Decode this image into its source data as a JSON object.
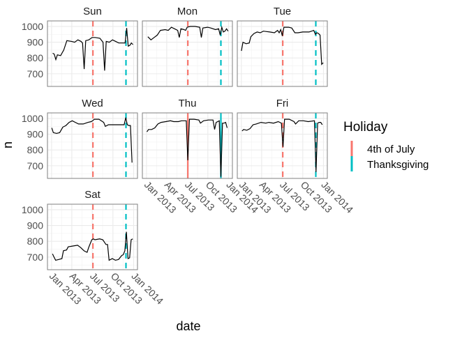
{
  "chart_data": {
    "type": "line",
    "facet_by": "weekday",
    "xlabel": "date",
    "ylabel": "n",
    "ylim": [
      620,
      1035
    ],
    "xlim": [
      "2013-01-01",
      "2013-12-31"
    ],
    "y_ticks": [
      700,
      800,
      900,
      1000
    ],
    "x_ticks": [
      {
        "date": "2013-01-01",
        "label": "Jan 2013"
      },
      {
        "date": "2013-04-01",
        "label": "Apr 2013"
      },
      {
        "date": "2013-07-01",
        "label": "Jul 2013"
      },
      {
        "date": "2013-10-01",
        "label": "Oct 2013"
      },
      {
        "date": "2014-01-01",
        "label": "Jan 2014"
      }
    ],
    "grid": true,
    "legend": {
      "title": "Holiday",
      "placement": "right",
      "entries": [
        {
          "label": "4th of July",
          "date": "2013-07-04",
          "color": "#F8766D"
        },
        {
          "label": "Thanksgiving",
          "date": "2013-11-28",
          "color": "#00BFC4"
        }
      ]
    },
    "panels": [
      {
        "title": "Sun",
        "points": [
          [
            "2013-01-06",
            830
          ],
          [
            "2013-01-13",
            825
          ],
          [
            "2013-01-20",
            790
          ],
          [
            "2013-01-27",
            820
          ],
          [
            "2013-02-10",
            815
          ],
          [
            "2013-02-24",
            850
          ],
          [
            "2013-03-10",
            910
          ],
          [
            "2013-03-31",
            905
          ],
          [
            "2013-04-14",
            900
          ],
          [
            "2013-04-28",
            915
          ],
          [
            "2013-05-12",
            905
          ],
          [
            "2013-05-19",
            895
          ],
          [
            "2013-05-26",
            730
          ],
          [
            "2013-06-02",
            910
          ],
          [
            "2013-06-16",
            915
          ],
          [
            "2013-06-30",
            930
          ],
          [
            "2013-07-14",
            930
          ],
          [
            "2013-08-04",
            925
          ],
          [
            "2013-08-18",
            900
          ],
          [
            "2013-08-25",
            720
          ],
          [
            "2013-09-01",
            905
          ],
          [
            "2013-09-15",
            900
          ],
          [
            "2013-09-29",
            915
          ],
          [
            "2013-10-13",
            905
          ],
          [
            "2013-10-27",
            895
          ],
          [
            "2013-11-17",
            895
          ],
          [
            "2013-11-24",
            895
          ],
          [
            "2013-12-01",
            990
          ],
          [
            "2013-12-08",
            875
          ],
          [
            "2013-12-15",
            880
          ],
          [
            "2013-12-22",
            895
          ],
          [
            "2013-12-29",
            885
          ]
        ]
      },
      {
        "title": "Mon",
        "points": [
          [
            "2013-01-07",
            935
          ],
          [
            "2013-01-21",
            915
          ],
          [
            "2013-02-04",
            930
          ],
          [
            "2013-02-18",
            945
          ],
          [
            "2013-03-04",
            975
          ],
          [
            "2013-03-25",
            980
          ],
          [
            "2013-04-08",
            975
          ],
          [
            "2013-04-22",
            995
          ],
          [
            "2013-05-06",
            985
          ],
          [
            "2013-05-20",
            975
          ],
          [
            "2013-05-27",
            930
          ],
          [
            "2013-06-03",
            985
          ],
          [
            "2013-06-17",
            980
          ],
          [
            "2013-06-24",
            975
          ],
          [
            "2013-07-01",
            995
          ],
          [
            "2013-07-15",
            1000
          ],
          [
            "2013-08-05",
            1000
          ],
          [
            "2013-08-26",
            995
          ],
          [
            "2013-09-02",
            930
          ],
          [
            "2013-09-09",
            990
          ],
          [
            "2013-09-30",
            995
          ],
          [
            "2013-10-14",
            990
          ],
          [
            "2013-11-04",
            980
          ],
          [
            "2013-11-18",
            985
          ],
          [
            "2013-11-25",
            945
          ],
          [
            "2013-12-02",
            995
          ],
          [
            "2013-12-09",
            965
          ],
          [
            "2013-12-16",
            970
          ],
          [
            "2013-12-23",
            985
          ],
          [
            "2013-12-30",
            970
          ]
        ]
      },
      {
        "title": "Tue",
        "points": [
          [
            "2013-01-01",
            845
          ],
          [
            "2013-01-08",
            900
          ],
          [
            "2013-01-22",
            890
          ],
          [
            "2013-02-05",
            895
          ],
          [
            "2013-02-12",
            935
          ],
          [
            "2013-02-26",
            955
          ],
          [
            "2013-03-12",
            965
          ],
          [
            "2013-03-26",
            960
          ],
          [
            "2013-04-09",
            970
          ],
          [
            "2013-05-07",
            965
          ],
          [
            "2013-05-28",
            960
          ],
          [
            "2013-06-11",
            975
          ],
          [
            "2013-06-18",
            960
          ],
          [
            "2013-06-25",
            980
          ],
          [
            "2013-07-02",
            940
          ],
          [
            "2013-07-09",
            995
          ],
          [
            "2013-07-30",
            995
          ],
          [
            "2013-08-13",
            990
          ],
          [
            "2013-08-27",
            960
          ],
          [
            "2013-09-10",
            960
          ],
          [
            "2013-10-01",
            965
          ],
          [
            "2013-10-29",
            965
          ],
          [
            "2013-11-19",
            975
          ],
          [
            "2013-11-26",
            950
          ],
          [
            "2013-12-03",
            960
          ],
          [
            "2013-12-10",
            955
          ],
          [
            "2013-12-17",
            945
          ],
          [
            "2013-12-24",
            760
          ],
          [
            "2013-12-31",
            770
          ]
        ]
      },
      {
        "title": "Wed",
        "points": [
          [
            "2013-01-02",
            940
          ],
          [
            "2013-01-09",
            910
          ],
          [
            "2013-01-23",
            905
          ],
          [
            "2013-02-06",
            910
          ],
          [
            "2013-02-20",
            945
          ],
          [
            "2013-03-06",
            955
          ],
          [
            "2013-03-20",
            975
          ],
          [
            "2013-04-03",
            985
          ],
          [
            "2013-04-17",
            975
          ],
          [
            "2013-05-01",
            965
          ],
          [
            "2013-05-22",
            965
          ],
          [
            "2013-06-12",
            975
          ],
          [
            "2013-06-26",
            980
          ],
          [
            "2013-07-03",
            985
          ],
          [
            "2013-07-10",
            995
          ],
          [
            "2013-07-31",
            995
          ],
          [
            "2013-08-21",
            975
          ],
          [
            "2013-08-28",
            950
          ],
          [
            "2013-09-11",
            960
          ],
          [
            "2013-10-02",
            960
          ],
          [
            "2013-10-30",
            960
          ],
          [
            "2013-11-20",
            960
          ],
          [
            "2013-11-27",
            1005
          ],
          [
            "2013-12-04",
            960
          ],
          [
            "2013-12-11",
            955
          ],
          [
            "2013-12-18",
            955
          ],
          [
            "2013-12-25",
            720
          ]
        ]
      },
      {
        "title": "Thu",
        "points": [
          [
            "2013-01-03",
            915
          ],
          [
            "2013-01-10",
            930
          ],
          [
            "2013-01-24",
            930
          ],
          [
            "2013-02-07",
            940
          ],
          [
            "2013-02-21",
            965
          ],
          [
            "2013-03-07",
            975
          ],
          [
            "2013-03-28",
            980
          ],
          [
            "2013-04-18",
            985
          ],
          [
            "2013-05-02",
            980
          ],
          [
            "2013-05-23",
            980
          ],
          [
            "2013-06-06",
            985
          ],
          [
            "2013-06-27",
            985
          ],
          [
            "2013-07-04",
            735
          ],
          [
            "2013-07-11",
            995
          ],
          [
            "2013-08-01",
            995
          ],
          [
            "2013-08-22",
            990
          ],
          [
            "2013-08-29",
            970
          ],
          [
            "2013-09-12",
            985
          ],
          [
            "2013-10-03",
            990
          ],
          [
            "2013-10-24",
            990
          ],
          [
            "2013-10-31",
            930
          ],
          [
            "2013-11-07",
            975
          ],
          [
            "2013-11-21",
            985
          ],
          [
            "2013-11-28",
            630
          ],
          [
            "2013-12-05",
            970
          ],
          [
            "2013-12-12",
            970
          ],
          [
            "2013-12-19",
            975
          ],
          [
            "2013-12-26",
            940
          ]
        ]
      },
      {
        "title": "Fri",
        "points": [
          [
            "2013-01-04",
            920
          ],
          [
            "2013-01-11",
            930
          ],
          [
            "2013-01-25",
            925
          ],
          [
            "2013-02-08",
            935
          ],
          [
            "2013-02-22",
            960
          ],
          [
            "2013-03-08",
            965
          ],
          [
            "2013-03-29",
            975
          ],
          [
            "2013-04-19",
            970
          ],
          [
            "2013-05-03",
            975
          ],
          [
            "2013-05-24",
            970
          ],
          [
            "2013-06-14",
            980
          ],
          [
            "2013-06-28",
            970
          ],
          [
            "2013-07-05",
            820
          ],
          [
            "2013-07-12",
            995
          ],
          [
            "2013-08-02",
            995
          ],
          [
            "2013-08-23",
            980
          ],
          [
            "2013-08-30",
            965
          ],
          [
            "2013-09-13",
            985
          ],
          [
            "2013-10-04",
            985
          ],
          [
            "2013-10-25",
            980
          ],
          [
            "2013-11-22",
            985
          ],
          [
            "2013-11-29",
            660
          ],
          [
            "2013-12-06",
            970
          ],
          [
            "2013-12-13",
            975
          ],
          [
            "2013-12-20",
            975
          ],
          [
            "2013-12-27",
            960
          ]
        ]
      },
      {
        "title": "Sat",
        "points": [
          [
            "2013-01-05",
            720
          ],
          [
            "2013-01-12",
            700
          ],
          [
            "2013-01-19",
            680
          ],
          [
            "2013-02-02",
            685
          ],
          [
            "2013-02-16",
            690
          ],
          [
            "2013-02-23",
            740
          ],
          [
            "2013-03-09",
            745
          ],
          [
            "2013-03-16",
            765
          ],
          [
            "2013-04-06",
            770
          ],
          [
            "2013-04-27",
            775
          ],
          [
            "2013-05-11",
            760
          ],
          [
            "2013-05-25",
            740
          ],
          [
            "2013-06-01",
            735
          ],
          [
            "2013-06-08",
            730
          ],
          [
            "2013-06-15",
            760
          ],
          [
            "2013-06-29",
            810
          ],
          [
            "2013-07-06",
            815
          ],
          [
            "2013-07-13",
            810
          ],
          [
            "2013-08-03",
            815
          ],
          [
            "2013-08-17",
            810
          ],
          [
            "2013-08-31",
            780
          ],
          [
            "2013-09-07",
            780
          ],
          [
            "2013-09-14",
            680
          ],
          [
            "2013-09-28",
            690
          ],
          [
            "2013-10-12",
            680
          ],
          [
            "2013-10-26",
            685
          ],
          [
            "2013-11-09",
            710
          ],
          [
            "2013-11-16",
            715
          ],
          [
            "2013-11-23",
            740
          ],
          [
            "2013-11-30",
            860
          ],
          [
            "2013-12-07",
            690
          ],
          [
            "2013-12-14",
            695
          ],
          [
            "2013-12-21",
            810
          ],
          [
            "2013-12-28",
            815
          ]
        ]
      }
    ]
  }
}
